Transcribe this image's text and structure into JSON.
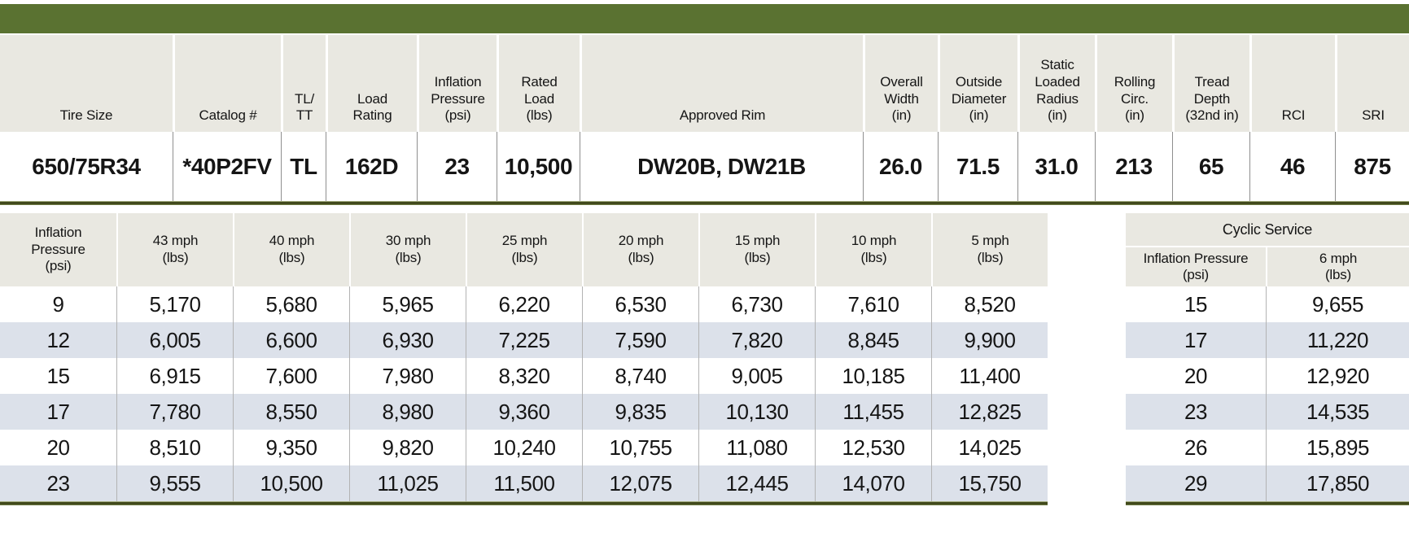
{
  "colors": {
    "title_bar": "#5a7231",
    "header_bg": "#e9e8e1",
    "stripe": "#dce1ea",
    "rule_dark": "#41491c"
  },
  "spec_table": {
    "headers": [
      "Tire Size",
      "Catalog #",
      "TL/\nTT",
      "Load\nRating",
      "Inflation\nPressure\n(psi)",
      "Rated\nLoad\n(lbs)",
      "Approved Rim",
      "Overall\nWidth\n(in)",
      "Outside\nDiameter\n(in)",
      "Static\nLoaded\nRadius\n(in)",
      "Rolling\nCirc.\n(in)",
      "Tread\nDepth\n(32nd in)",
      "RCI",
      "SRI"
    ],
    "values": [
      "650/75R34",
      "*40P2FV",
      "TL",
      "162D",
      "23",
      "10,500",
      "DW20B, DW21B",
      "26.0",
      "71.5",
      "31.0",
      "213",
      "65",
      "46",
      "875"
    ]
  },
  "load_table": {
    "headers": [
      "Inflation\nPressure\n(psi)",
      "43 mph\n(lbs)",
      "40 mph\n(lbs)",
      "30 mph\n(lbs)",
      "25 mph\n(lbs)",
      "20 mph\n(lbs)",
      "15 mph\n(lbs)",
      "10 mph\n(lbs)",
      "5 mph\n(lbs)"
    ],
    "rows": [
      [
        "9",
        "5,170",
        "5,680",
        "5,965",
        "6,220",
        "6,530",
        "6,730",
        "7,610",
        "8,520"
      ],
      [
        "12",
        "6,005",
        "6,600",
        "6,930",
        "7,225",
        "7,590",
        "7,820",
        "8,845",
        "9,900"
      ],
      [
        "15",
        "6,915",
        "7,600",
        "7,980",
        "8,320",
        "8,740",
        "9,005",
        "10,185",
        "11,400"
      ],
      [
        "17",
        "7,780",
        "8,550",
        "8,980",
        "9,360",
        "9,835",
        "10,130",
        "11,455",
        "12,825"
      ],
      [
        "20",
        "8,510",
        "9,350",
        "9,820",
        "10,240",
        "10,755",
        "11,080",
        "12,530",
        "14,025"
      ],
      [
        "23",
        "9,555",
        "10,500",
        "11,025",
        "11,500",
        "12,075",
        "12,445",
        "14,070",
        "15,750"
      ]
    ]
  },
  "cyclic_table": {
    "title": "Cyclic Service",
    "headers": [
      "Inflation Pressure\n(psi)",
      "6 mph\n(lbs)"
    ],
    "rows": [
      [
        "15",
        "9,655"
      ],
      [
        "17",
        "11,220"
      ],
      [
        "20",
        "12,920"
      ],
      [
        "23",
        "14,535"
      ],
      [
        "26",
        "15,895"
      ],
      [
        "29",
        "17,850"
      ]
    ]
  }
}
